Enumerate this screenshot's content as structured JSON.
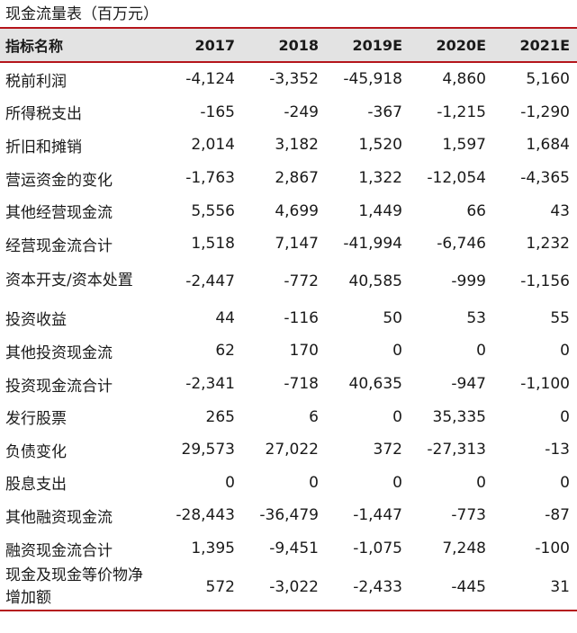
{
  "title": "现金流量表（百万元）",
  "header": {
    "label": "指标名称",
    "years": [
      "2017",
      "2018",
      "2019E",
      "2020E",
      "2021E"
    ]
  },
  "rows": [
    {
      "label": "税前利润",
      "values": [
        "-4,124",
        "-3,352",
        "-45,918",
        "4,860",
        "5,160"
      ]
    },
    {
      "label": "所得税支出",
      "values": [
        "-165",
        "-249",
        "-367",
        "-1,215",
        "-1,290"
      ]
    },
    {
      "label": "折旧和摊销",
      "values": [
        "2,014",
        "3,182",
        "1,520",
        "1,597",
        "1,684"
      ]
    },
    {
      "label": "营运资金的变化",
      "values": [
        "-1,763",
        "2,867",
        "1,322",
        "-12,054",
        "-4,365"
      ]
    },
    {
      "label": "其他经营现金流",
      "values": [
        "5,556",
        "4,699",
        "1,449",
        "66",
        "43"
      ]
    },
    {
      "label": "经营现金流合计",
      "values": [
        "1,518",
        "7,147",
        "-41,994",
        "-6,746",
        "1,232"
      ]
    },
    {
      "label": "资本开支/资本处置",
      "values": [
        "-2,447",
        "-772",
        "40,585",
        "-999",
        "-1,156"
      ]
    },
    {
      "label": "投资收益",
      "values": [
        "44",
        "-116",
        "50",
        "53",
        "55"
      ]
    },
    {
      "label": "其他投资现金流",
      "values": [
        "62",
        "170",
        "0",
        "0",
        "0"
      ]
    },
    {
      "label": "投资现金流合计",
      "values": [
        "-2,341",
        "-718",
        "40,635",
        "-947",
        "-1,100"
      ]
    },
    {
      "label": "发行股票",
      "values": [
        "265",
        "6",
        "0",
        "35,335",
        "0"
      ]
    },
    {
      "label": "负债变化",
      "values": [
        "29,573",
        "27,022",
        "372",
        "-27,313",
        "-13"
      ]
    },
    {
      "label": "股息支出",
      "values": [
        "0",
        "0",
        "0",
        "0",
        "0"
      ]
    },
    {
      "label": "其他融资现金流",
      "values": [
        "-28,443",
        "-36,479",
        "-1,447",
        "-773",
        "-87"
      ]
    },
    {
      "label": "融资现金流合计",
      "values": [
        "1,395",
        "-9,451",
        "-1,075",
        "7,248",
        "-100"
      ]
    },
    {
      "label": "现金及现金等价物净增加额",
      "values": [
        "572",
        "-3,022",
        "-2,433",
        "-445",
        "31"
      ]
    }
  ]
}
